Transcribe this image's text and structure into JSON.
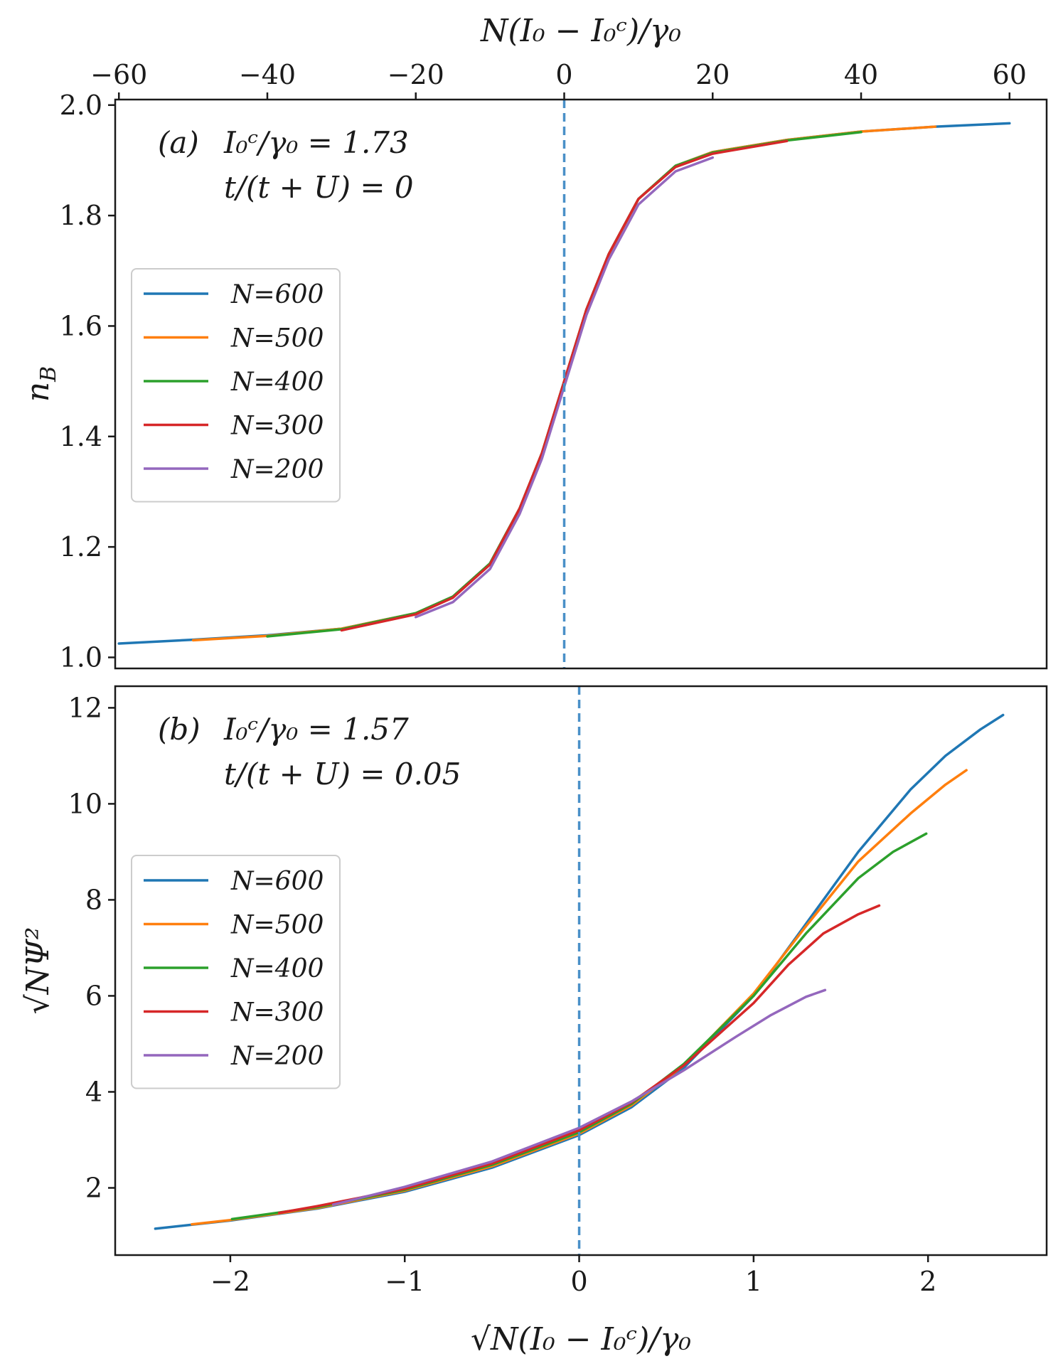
{
  "figure": {
    "top_axis_label": "N(I₀ − I₀ᶜ)/γ₀",
    "bottom_axis_label": "√N(I₀ − I₀ᶜ)/γ₀",
    "colors": {
      "N=600": "#1f77b4",
      "N=500": "#ff7f0e",
      "N=400": "#2ca02c",
      "N=300": "#d62728",
      "N=200": "#9467bd",
      "vline": "#4a90c8"
    }
  },
  "chart_data": [
    {
      "type": "line",
      "panel_label": "(a)",
      "annotation_line1": "I₀ᶜ/γ₀ = 1.73",
      "annotation_line2": "t/(t + U) = 0",
      "xlabel": "N(I₀ − I₀ᶜ)/γ₀",
      "ylabel": "n_B",
      "xlim": [
        -60.5,
        65
      ],
      "ylim": [
        0.98,
        2.01
      ],
      "xticks": [
        -60,
        -40,
        -20,
        0,
        20,
        40,
        60
      ],
      "xtick_labels": [
        "−60",
        "−40",
        "−20",
        "0",
        "20",
        "40",
        "60"
      ],
      "yticks": [
        1.0,
        1.2,
        1.4,
        1.6,
        1.8,
        2.0
      ],
      "ytick_labels": [
        "1.0",
        "1.2",
        "1.4",
        "1.6",
        "1.8",
        "2.0"
      ],
      "vline_x": 0,
      "legend_position": "center-left",
      "series": [
        {
          "name": "N=600",
          "label": "N=600",
          "x": [
            -60,
            -50,
            -40,
            -30,
            -20,
            -15,
            -10,
            -6,
            -3,
            0,
            3,
            6,
            10,
            15,
            20,
            30,
            40,
            50,
            60
          ],
          "values": [
            1.025,
            1.032,
            1.04,
            1.052,
            1.08,
            1.11,
            1.17,
            1.27,
            1.37,
            1.5,
            1.63,
            1.73,
            1.83,
            1.89,
            1.915,
            1.937,
            1.952,
            1.961,
            1.967
          ]
        },
        {
          "name": "N=500",
          "label": "N=500",
          "x": [
            -50,
            -40,
            -30,
            -20,
            -15,
            -10,
            -6,
            -3,
            0,
            3,
            6,
            10,
            15,
            20,
            30,
            40,
            50
          ],
          "values": [
            1.031,
            1.039,
            1.052,
            1.08,
            1.11,
            1.17,
            1.27,
            1.37,
            1.5,
            1.63,
            1.73,
            1.83,
            1.89,
            1.915,
            1.937,
            1.952,
            1.961
          ]
        },
        {
          "name": "N=400",
          "label": "N=400",
          "x": [
            -40,
            -30,
            -20,
            -15,
            -10,
            -6,
            -3,
            0,
            3,
            6,
            10,
            15,
            20,
            30,
            40
          ],
          "values": [
            1.038,
            1.051,
            1.08,
            1.11,
            1.17,
            1.27,
            1.37,
            1.5,
            1.63,
            1.73,
            1.83,
            1.89,
            1.914,
            1.936,
            1.951
          ]
        },
        {
          "name": "N=300",
          "label": "N=300",
          "x": [
            -30,
            -20,
            -15,
            -10,
            -6,
            -3,
            0,
            3,
            6,
            10,
            15,
            20,
            30
          ],
          "values": [
            1.049,
            1.078,
            1.108,
            1.168,
            1.27,
            1.37,
            1.5,
            1.63,
            1.73,
            1.83,
            1.888,
            1.912,
            1.935
          ]
        },
        {
          "name": "N=200",
          "label": "N=200",
          "x": [
            -20,
            -15,
            -10,
            -6,
            -3,
            0,
            3,
            6,
            10,
            15,
            20
          ],
          "values": [
            1.073,
            1.1,
            1.16,
            1.26,
            1.36,
            1.49,
            1.62,
            1.72,
            1.82,
            1.88,
            1.905
          ]
        }
      ]
    },
    {
      "type": "line",
      "panel_label": "(b)",
      "annotation_line1": "I₀ᶜ/γ₀ = 1.57",
      "annotation_line2": "t/(t + U) = 0.05",
      "xlabel": "√N(I₀ − I₀ᶜ)/γ₀",
      "ylabel": "√NΨ²",
      "xlim": [
        -2.66,
        2.68
      ],
      "ylim": [
        0.6,
        12.45
      ],
      "xticks": [
        -2,
        -1,
        0,
        1,
        2
      ],
      "xtick_labels": [
        "−2",
        "−1",
        "0",
        "1",
        "2"
      ],
      "yticks": [
        2,
        4,
        6,
        8,
        10,
        12
      ],
      "ytick_labels": [
        "2",
        "4",
        "6",
        "8",
        "10",
        "12"
      ],
      "vline_x": 0,
      "legend_position": "center-left",
      "series": [
        {
          "name": "N=600",
          "label": "N=600",
          "x": [
            -2.43,
            -2.0,
            -1.5,
            -1.0,
            -0.5,
            0.0,
            0.3,
            0.6,
            1.0,
            1.3,
            1.6,
            1.9,
            2.1,
            2.3,
            2.43
          ],
          "values": [
            1.15,
            1.32,
            1.57,
            1.92,
            2.42,
            3.1,
            3.68,
            4.5,
            6.0,
            7.5,
            9.0,
            10.3,
            11.0,
            11.55,
            11.85
          ]
        },
        {
          "name": "N=500",
          "label": "N=500",
          "x": [
            -2.22,
            -2.0,
            -1.5,
            -1.0,
            -0.5,
            0.0,
            0.3,
            0.6,
            1.0,
            1.3,
            1.6,
            1.9,
            2.1,
            2.22
          ],
          "values": [
            1.24,
            1.33,
            1.58,
            1.94,
            2.45,
            3.13,
            3.72,
            4.55,
            6.05,
            7.45,
            8.8,
            9.8,
            10.4,
            10.7
          ]
        },
        {
          "name": "N=400",
          "label": "N=400",
          "x": [
            -1.99,
            -1.5,
            -1.0,
            -0.5,
            0.0,
            0.3,
            0.6,
            1.0,
            1.3,
            1.6,
            1.8,
            1.99
          ],
          "values": [
            1.35,
            1.6,
            1.96,
            2.48,
            3.16,
            3.75,
            4.58,
            6.0,
            7.3,
            8.45,
            9.0,
            9.38
          ]
        },
        {
          "name": "N=300",
          "label": "N=300",
          "x": [
            -1.72,
            -1.5,
            -1.0,
            -0.5,
            0.0,
            0.3,
            0.6,
            1.0,
            1.2,
            1.4,
            1.6,
            1.72
          ],
          "values": [
            1.48,
            1.62,
            1.98,
            2.51,
            3.2,
            3.78,
            4.55,
            5.85,
            6.65,
            7.3,
            7.7,
            7.88
          ]
        },
        {
          "name": "N=200",
          "label": "N=200",
          "x": [
            -1.41,
            -1.0,
            -0.5,
            0.0,
            0.3,
            0.6,
            0.9,
            1.1,
            1.3,
            1.41
          ],
          "values": [
            1.65,
            2.02,
            2.55,
            3.25,
            3.8,
            4.45,
            5.15,
            5.6,
            5.98,
            6.12
          ]
        }
      ]
    }
  ]
}
